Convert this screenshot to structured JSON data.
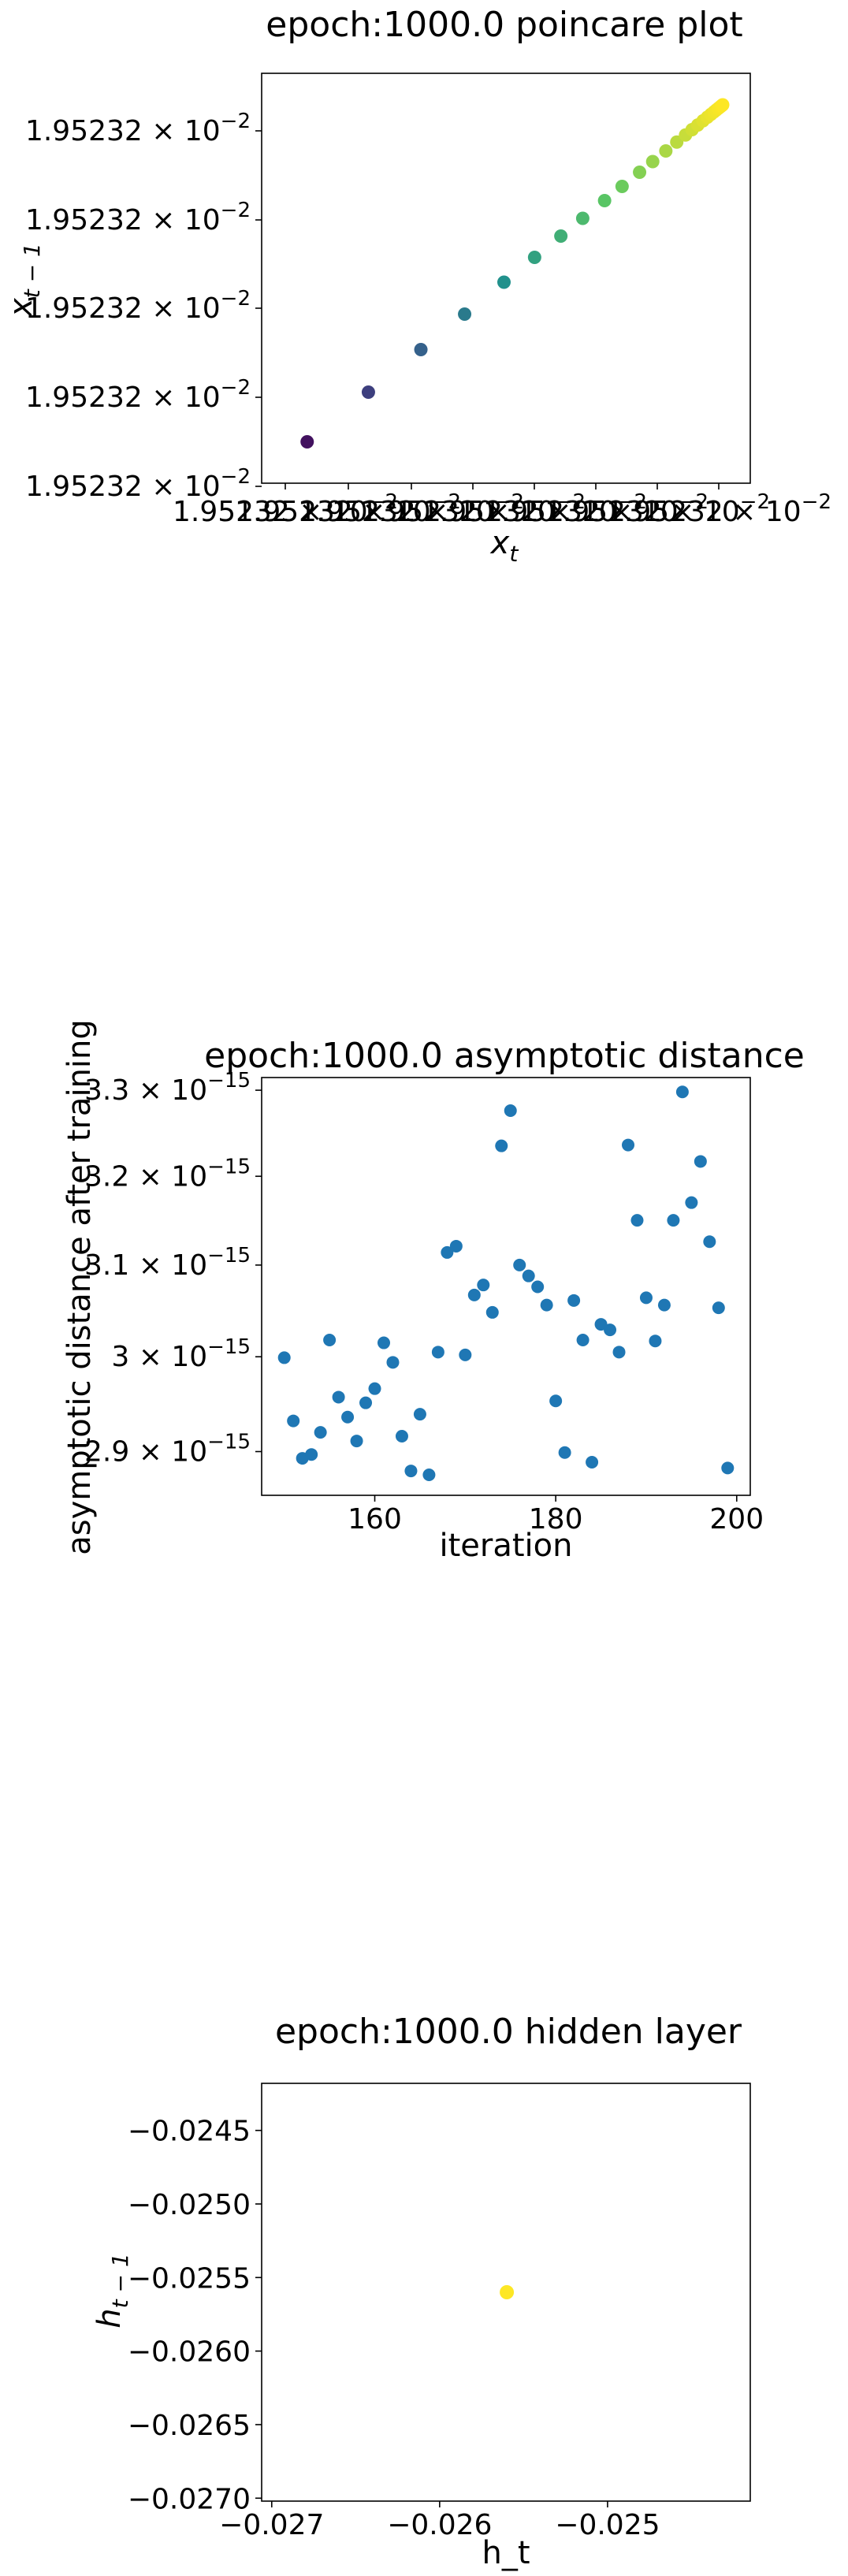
{
  "chart_data": [
    {
      "type": "scatter",
      "title": "epoch:1000.0 poincare plot",
      "xlabel": "x_t",
      "ylabel": "x_{t-1}",
      "scale": "log",
      "colormap": "viridis",
      "xtick_labels": [
        "1.95232 × 10^{-2}",
        "1.95232 × 10^{-2}",
        "1.95232 × 10^{-2}",
        "1.95232 × 10^{-2}",
        "1.95232 × 10^{-2}",
        "1.95232 × 10^{-2}",
        "1.95232 × 10^{-2}",
        "1.95232 × 10^{-2}"
      ],
      "ytick_labels": [
        "1.95232 × 10^{-2}",
        "1.95232 × 10^{-2}",
        "1.95232 × 10^{-2}",
        "1.95232 × 10^{-2}",
        "1.95232 × 10^{-2}"
      ],
      "x": [
        0.05,
        0.19,
        0.31,
        0.41,
        0.5,
        0.57,
        0.63,
        0.68,
        0.73,
        0.77,
        0.81,
        0.84,
        0.87,
        0.895,
        0.915,
        0.93,
        0.943,
        0.955,
        0.965,
        0.973,
        0.98,
        0.985,
        0.99,
        0.994,
        0.997,
        0.999,
        1.0
      ],
      "y": [
        0.05,
        0.19,
        0.31,
        0.41,
        0.5,
        0.57,
        0.63,
        0.68,
        0.73,
        0.77,
        0.81,
        0.84,
        0.87,
        0.895,
        0.915,
        0.93,
        0.943,
        0.955,
        0.965,
        0.973,
        0.98,
        0.985,
        0.99,
        0.994,
        0.997,
        0.999,
        1.0
      ],
      "grid": false
    },
    {
      "type": "scatter",
      "title": "epoch:1000.0 asymptotic distance",
      "xlabel": "iteration",
      "ylabel": "asymptotic distance after training",
      "xlim": [
        147.5,
        201.5
      ],
      "ylim": [
        2.855,
        3.315
      ],
      "yscale": "log",
      "xticks": [
        160,
        180,
        200
      ],
      "yticks": [
        2.9,
        3.0,
        3.1,
        3.2,
        3.3
      ],
      "ytick_labels": [
        "2.9 × 10^{-15}",
        "3 × 10^{-15}",
        "3.1 × 10^{-15}",
        "3.2 × 10^{-15}",
        "3.3 × 10^{-15}"
      ],
      "color": "#1f77b4",
      "x": [
        150,
        151,
        152,
        153,
        154,
        155,
        156,
        157,
        158,
        159,
        160,
        161,
        162,
        163,
        164,
        165,
        166,
        167,
        168,
        169,
        170,
        171,
        172,
        173,
        174,
        175,
        176,
        177,
        178,
        179,
        180,
        181,
        182,
        183,
        184,
        185,
        186,
        187,
        188,
        189,
        190,
        191,
        192,
        193,
        194,
        195,
        196,
        197,
        198,
        199
      ],
      "y": [
        2.999,
        2.932,
        2.893,
        2.897,
        2.92,
        3.018,
        2.957,
        2.936,
        2.911,
        2.951,
        2.966,
        3.015,
        2.994,
        2.916,
        2.88,
        2.939,
        2.876,
        3.005,
        3.114,
        3.121,
        3.002,
        3.067,
        3.078,
        3.048,
        3.235,
        3.276,
        3.1,
        3.088,
        3.076,
        3.056,
        2.953,
        2.899,
        3.061,
        3.018,
        2.889,
        3.035,
        3.029,
        3.005,
        3.236,
        3.15,
        3.064,
        3.017,
        3.056,
        3.15,
        3.298,
        3.17,
        3.217,
        3.126,
        3.053,
        2.883
      ],
      "grid": false
    },
    {
      "type": "scatter",
      "title": "epoch:1000.0 hidden layer",
      "xlabel": "h_t",
      "ylabel": "h_{t-1}",
      "xlim": [
        -0.02706,
        -0.02415
      ],
      "ylim": [
        -0.02702,
        -0.02418
      ],
      "xticks": [
        -0.027,
        -0.026,
        -0.025
      ],
      "xtick_labels": [
        "−0.027",
        "−0.026",
        "−0.025"
      ],
      "yticks": [
        -0.0245,
        -0.025,
        -0.0255,
        -0.026,
        -0.0265,
        -0.027
      ],
      "ytick_labels": [
        "−0.0245",
        "−0.0250",
        "−0.0255",
        "−0.0260",
        "−0.0265",
        "−0.0270"
      ],
      "color": "#fde725",
      "x": [
        -0.0256
      ],
      "y": [
        -0.0256
      ],
      "grid": false
    }
  ]
}
